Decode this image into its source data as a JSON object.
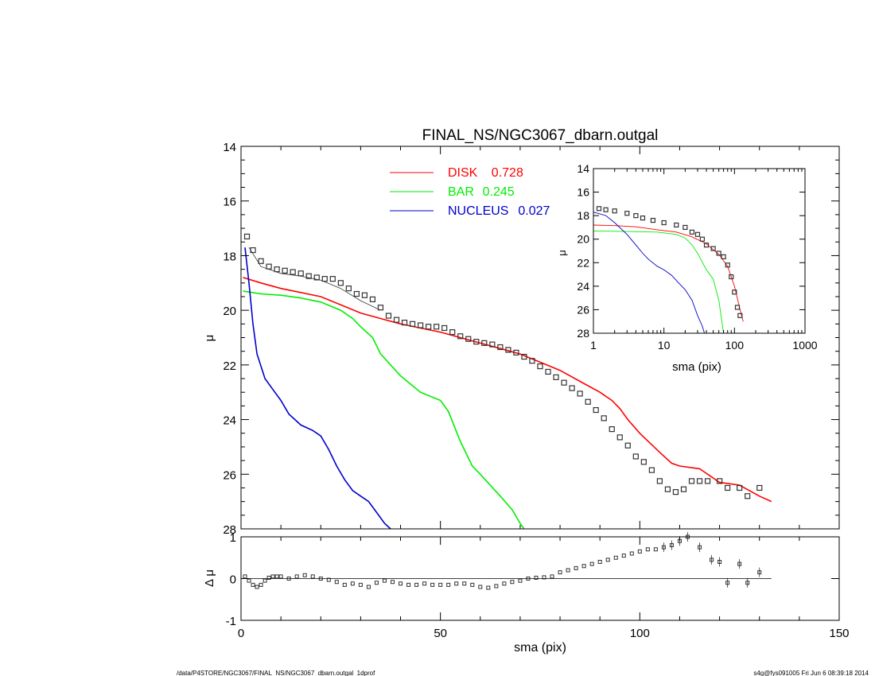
{
  "title": "FINAL_NS/NGC3067_dbarn.outgal",
  "footer": {
    "left": "/data/P4STORE/NGC3067/FINAL_NS/NGC3067_dbarn.outgal_1dprof",
    "right": "s4g@fys091005  Fri Jun  6 08:39:18 2014"
  },
  "colors": {
    "disk": "#ff0000",
    "bar": "#00ee00",
    "nucleus": "#0000cc",
    "data": "#333333",
    "axes": "#000000"
  },
  "legend": [
    {
      "name": "DISK",
      "value": "0.728",
      "color": "#ff0000"
    },
    {
      "name": "BAR",
      "value": "0.245",
      "color": "#00ee00"
    },
    {
      "name": "NUCLEUS",
      "value": "0.027",
      "color": "#0000cc"
    }
  ],
  "chart_data": [
    {
      "type": "line",
      "panel": "main",
      "xlabel": "",
      "ylabel": "μ",
      "xlim": [
        0,
        150
      ],
      "ylim": [
        28,
        14
      ],
      "y_inverted": true,
      "yticks": [
        "14",
        "16",
        "18",
        "20",
        "22",
        "24",
        "26",
        "28"
      ],
      "legend_position": "top",
      "series": [
        {
          "name": "DISK",
          "color": "#ff0000",
          "x": [
            0.5,
            5,
            10,
            15,
            20,
            25,
            30,
            35,
            40,
            45,
            50,
            55,
            60,
            65,
            70,
            75,
            80,
            85,
            90,
            93,
            95,
            97,
            100,
            105,
            108,
            110,
            115,
            118,
            120,
            125,
            130,
            133
          ],
          "y": [
            18.8,
            19.0,
            19.2,
            19.35,
            19.5,
            19.8,
            20.1,
            20.3,
            20.5,
            20.65,
            20.8,
            21.0,
            21.2,
            21.4,
            21.6,
            21.9,
            22.2,
            22.6,
            23.0,
            23.3,
            23.6,
            24.0,
            24.5,
            25.2,
            25.6,
            25.7,
            25.8,
            26.1,
            26.3,
            26.4,
            26.8,
            27.0
          ]
        },
        {
          "name": "BAR",
          "color": "#00ee00",
          "x": [
            0.5,
            5,
            10,
            15,
            20,
            25,
            28,
            30,
            33,
            35,
            40,
            45,
            50,
            52,
            55,
            58,
            60,
            65,
            68,
            70,
            71
          ],
          "y": [
            19.3,
            19.4,
            19.45,
            19.55,
            19.7,
            20.0,
            20.3,
            20.6,
            21.0,
            21.6,
            22.4,
            23.0,
            23.3,
            23.7,
            24.8,
            25.7,
            26.0,
            26.8,
            27.3,
            27.8,
            28.0
          ]
        },
        {
          "name": "NUCLEUS",
          "color": "#0000cc",
          "x": [
            1.0,
            2.0,
            3.0,
            4.0,
            6.0,
            8.0,
            10.0,
            12.0,
            15.0,
            18.0,
            20.0,
            22.0,
            24.0,
            26.0,
            28.0,
            30.0,
            32.0,
            34.0,
            36.0,
            37.5
          ],
          "y": [
            17.7,
            19.0,
            20.5,
            21.6,
            22.5,
            22.9,
            23.3,
            23.8,
            24.2,
            24.4,
            24.6,
            25.1,
            25.7,
            26.2,
            26.6,
            26.8,
            27.0,
            27.4,
            27.8,
            28.0
          ]
        },
        {
          "name": "",
          "color": "#333333",
          "style": "thin-model",
          "x": [
            2.0,
            5.0,
            10.0,
            15.0,
            20.0,
            25.0,
            30.0,
            35.0
          ],
          "y": [
            17.7,
            18.4,
            18.65,
            18.75,
            18.9,
            19.2,
            19.65,
            20.0
          ]
        },
        {
          "name": "",
          "color": "#333333",
          "style": "squares",
          "x": [
            1.5,
            3,
            5,
            7,
            9,
            11,
            13,
            15,
            17,
            19,
            21,
            23,
            25,
            27,
            29,
            31,
            33,
            35,
            37,
            39,
            41,
            43,
            45,
            47,
            49,
            51,
            53,
            55,
            57,
            59,
            61,
            63,
            65,
            67,
            69,
            71,
            73,
            75,
            77,
            79,
            81,
            83,
            85,
            87,
            89,
            91,
            93,
            95,
            97,
            99,
            101,
            103,
            105,
            107,
            109,
            111,
            113,
            115,
            117,
            120,
            122,
            125,
            127,
            130
          ],
          "y": [
            17.3,
            17.8,
            18.2,
            18.4,
            18.5,
            18.55,
            18.6,
            18.65,
            18.75,
            18.8,
            18.85,
            18.85,
            19.0,
            19.2,
            19.4,
            19.45,
            19.6,
            19.9,
            20.2,
            20.35,
            20.45,
            20.5,
            20.55,
            20.6,
            20.6,
            20.65,
            20.8,
            20.95,
            21.05,
            21.15,
            21.2,
            21.25,
            21.35,
            21.45,
            21.55,
            21.7,
            21.85,
            22.05,
            22.25,
            22.45,
            22.65,
            22.85,
            23.05,
            23.35,
            23.65,
            23.95,
            24.35,
            24.65,
            24.95,
            25.35,
            25.55,
            25.85,
            26.25,
            26.55,
            26.65,
            26.55,
            26.25,
            26.25,
            26.25,
            26.25,
            26.5,
            26.5,
            26.8,
            26.5
          ]
        }
      ]
    },
    {
      "type": "scatter",
      "panel": "residual",
      "xlabel": "sma (pix)",
      "ylabel": "Δ μ",
      "xlim": [
        0,
        150
      ],
      "ylim": [
        -1,
        1
      ],
      "xticks": [
        "0",
        "50",
        "100",
        "150"
      ],
      "yticks": [
        "-1",
        "0",
        "1"
      ],
      "x": [
        1,
        2,
        3,
        4,
        5,
        6,
        7,
        8,
        9,
        10,
        12,
        14,
        16,
        18,
        20,
        22,
        24,
        26,
        28,
        30,
        32,
        34,
        36,
        38,
        40,
        42,
        44,
        46,
        48,
        50,
        52,
        54,
        56,
        58,
        60,
        62,
        64,
        66,
        68,
        70,
        72,
        74,
        76,
        78,
        80,
        82,
        84,
        86,
        88,
        90,
        92,
        94,
        96,
        98,
        100,
        102,
        104,
        106,
        108,
        110,
        112,
        115,
        118,
        120,
        122,
        125,
        127,
        130
      ],
      "y": [
        0.05,
        -0.05,
        -0.15,
        -0.2,
        -0.15,
        -0.05,
        0.02,
        0.05,
        0.05,
        0.05,
        0.0,
        0.05,
        0.08,
        0.05,
        0.0,
        -0.03,
        -0.08,
        -0.15,
        -0.12,
        -0.15,
        -0.2,
        -0.1,
        -0.05,
        -0.08,
        -0.12,
        -0.15,
        -0.15,
        -0.12,
        -0.15,
        -0.15,
        -0.15,
        -0.12,
        -0.12,
        -0.15,
        -0.2,
        -0.22,
        -0.18,
        -0.12,
        -0.08,
        -0.05,
        0.0,
        0.02,
        0.03,
        0.05,
        0.15,
        0.2,
        0.25,
        0.3,
        0.35,
        0.4,
        0.45,
        0.5,
        0.55,
        0.6,
        0.65,
        0.7,
        0.7,
        0.75,
        0.8,
        0.9,
        1.0,
        0.75,
        0.45,
        0.4,
        -0.1,
        0.35,
        -0.1,
        0.15
      ],
      "baseline": 0
    },
    {
      "type": "scatter",
      "panel": "inset",
      "xlabel": "sma (pix)",
      "ylabel": "μ",
      "x_scale": "log",
      "xlim": [
        1,
        1000
      ],
      "ylim": [
        28,
        14
      ],
      "y_inverted": true,
      "xticks": [
        "1",
        "10",
        "100",
        "1000"
      ],
      "yticks": [
        "14",
        "16",
        "18",
        "20",
        "22",
        "24",
        "26",
        "28"
      ],
      "series": [
        {
          "name": "DISK",
          "color": "#ff0000",
          "x": [
            1,
            2,
            4,
            8,
            15,
            25,
            40,
            60,
            80,
            100,
            120,
            133
          ],
          "y": [
            18.8,
            18.85,
            18.95,
            19.2,
            19.4,
            19.8,
            20.4,
            21.3,
            22.3,
            24.0,
            26.0,
            27.0
          ]
        },
        {
          "name": "BAR",
          "color": "#00ee00",
          "x": [
            1,
            3,
            8,
            15,
            20,
            25,
            30,
            40,
            50,
            60,
            70
          ],
          "y": [
            19.3,
            19.35,
            19.4,
            19.6,
            19.9,
            20.5,
            21.2,
            22.6,
            23.4,
            25.2,
            28.0
          ]
        },
        {
          "name": "NUCLEUS",
          "color": "#0000cc",
          "x": [
            1,
            1.5,
            2,
            3,
            4,
            5,
            6,
            8,
            10,
            13,
            16,
            20,
            25,
            30,
            35,
            37.5
          ],
          "y": [
            17.7,
            18.0,
            18.6,
            19.6,
            20.5,
            21.2,
            21.7,
            22.3,
            22.6,
            23.1,
            23.7,
            24.3,
            25.2,
            26.5,
            27.4,
            28.0
          ]
        },
        {
          "name": "",
          "color": "#333333",
          "style": "squares",
          "x": [
            1.2,
            1.5,
            2,
            3,
            4,
            5,
            7,
            10,
            15,
            20,
            25,
            30,
            35,
            40,
            50,
            60,
            70,
            80,
            90,
            100,
            110,
            120
          ],
          "y": [
            17.4,
            17.5,
            17.6,
            17.8,
            18.0,
            18.2,
            18.4,
            18.6,
            18.8,
            19.0,
            19.4,
            19.6,
            20.0,
            20.5,
            20.8,
            21.2,
            21.5,
            22.2,
            23.2,
            24.5,
            25.8,
            26.5
          ]
        }
      ]
    }
  ]
}
